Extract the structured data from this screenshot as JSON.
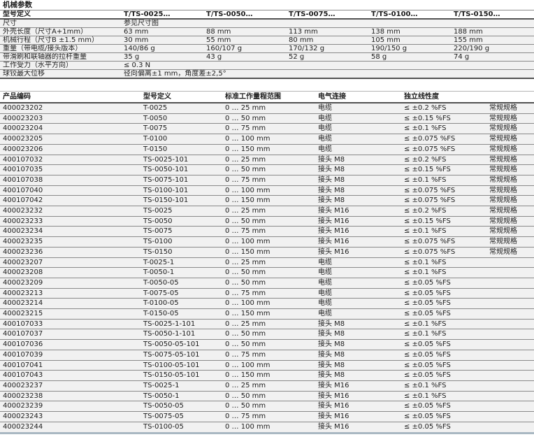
{
  "colors": {
    "page_bg": "#ffffff",
    "row_bg": "#f1f1f1",
    "row_line": "#8a8a8a",
    "header_line": "#525252",
    "bottom_band": "#a9b8c2",
    "text": "#1c1c1c"
  },
  "mech": {
    "title": "机械参数",
    "header": {
      "label": "型号定义",
      "values": [
        "T/TS-0025…",
        "T/TS-0050…",
        "T/TS-0075…",
        "T/TS-0100…",
        "T/TS-0150…"
      ]
    },
    "rows": [
      {
        "label": "尺寸",
        "span": "参见尺寸图"
      },
      {
        "label": "外壳长度（尺寸A+1mm）",
        "values": [
          "63 mm",
          "88 mm",
          "113 mm",
          "138 mm",
          "188 mm"
        ]
      },
      {
        "label": "机械行程（尺寸B ±1.5 mm）",
        "values": [
          "30 mm",
          "55 mm",
          "80 mm",
          "105 mm",
          "155 mm"
        ]
      },
      {
        "label": "重量（带电缆/接头版本）",
        "values": [
          "140/86 g",
          "160/107 g",
          "170/132 g",
          "190/150 g",
          "220/190 g"
        ]
      },
      {
        "label": "带滑刷和联轴器的拉杆重量",
        "values": [
          "35 g",
          "43 g",
          "52 g",
          "58 g",
          "74 g"
        ]
      },
      {
        "label": "工作受力（水平方向）",
        "span": "≤ 0.3 N"
      },
      {
        "label": "球铰最大位移",
        "span": "径向偏离±1 mm，角度差±2,5°"
      }
    ]
  },
  "products": {
    "headers": [
      "产品编码",
      "型号定义",
      "标准工作量程范围",
      "电气连接",
      "独立线性度",
      ""
    ],
    "rows": [
      [
        "400023202",
        "T-0025",
        "0 … 25 mm",
        "电缆",
        "≤ ±0.2 %FS",
        "常规规格"
      ],
      [
        "400023203",
        "T-0050",
        "0 … 50 mm",
        "电缆",
        "≤ ±0.15 %FS",
        "常规规格"
      ],
      [
        "400023204",
        "T-0075",
        "0 … 75 mm",
        "电缆",
        "≤ ±0.1 %FS",
        "常规规格"
      ],
      [
        "400023205",
        "T-0100",
        "0 … 100 mm",
        "电缆",
        "≤ ±0.075 %FS",
        "常规规格"
      ],
      [
        "400023206",
        "T-0150",
        "0 … 150 mm",
        "电缆",
        "≤ ±0.075 %FS",
        "常规规格"
      ],
      [
        "400107032",
        "TS-0025-101",
        "0 … 25 mm",
        "接头 M8",
        "≤ ±0.2 %FS",
        "常规规格"
      ],
      [
        "400107035",
        "TS-0050-101",
        "0 … 50 mm",
        "接头 M8",
        "≤ ±0.15 %FS",
        "常规规格"
      ],
      [
        "400107038",
        "TS-0075-101",
        "0 … 75 mm",
        "接头 M8",
        "≤ ±0.1 %FS",
        "常规规格"
      ],
      [
        "400107040",
        "TS-0100-101",
        "0 … 100 mm",
        "接头 M8",
        "≤ ±0.075 %FS",
        "常规规格"
      ],
      [
        "400107042",
        "TS-0150-101",
        "0 … 150 mm",
        "接头 M8",
        "≤ ±0.075 %FS",
        "常规规格"
      ],
      [
        "400023232",
        "TS-0025",
        "0 … 25 mm",
        "接头 M16",
        "≤ ±0.2 %FS",
        "常规规格"
      ],
      [
        "400023233",
        "TS-0050",
        "0 … 50 mm",
        "接头 M16",
        "≤ ±0.15 %FS",
        "常规规格"
      ],
      [
        "400023234",
        "TS-0075",
        "0 … 75 mm",
        "接头 M16",
        "≤ ±0.1 %FS",
        "常规规格"
      ],
      [
        "400023235",
        "TS-0100",
        "0 … 100 mm",
        "接头 M16",
        "≤ ±0.075 %FS",
        "常规规格"
      ],
      [
        "400023236",
        "TS-0150",
        "0 … 150 mm",
        "接头 M16",
        "≤ ±0.075 %FS",
        "常规规格"
      ],
      [
        "400023207",
        "T-0025-1",
        "0 … 25 mm",
        "电缆",
        "≤ ±0.1 %FS",
        ""
      ],
      [
        "400023208",
        "T-0050-1",
        "0 … 50 mm",
        "电缆",
        "≤ ±0.1 %FS",
        ""
      ],
      [
        "400023209",
        "T-0050-05",
        "0 … 50 mm",
        "电缆",
        "≤ ±0.05 %FS",
        ""
      ],
      [
        "400023213",
        "T-0075-05",
        "0 … 75 mm",
        "电缆",
        "≤ ±0.05 %FS",
        ""
      ],
      [
        "400023214",
        "T-0100-05",
        "0 … 100 mm",
        "电缆",
        "≤ ±0.05 %FS",
        ""
      ],
      [
        "400023215",
        "T-0150-05",
        "0 … 150 mm",
        "电缆",
        "≤ ±0.05 %FS",
        ""
      ],
      [
        "400107033",
        "TS-0025-1-101",
        "0 … 25 mm",
        "接头 M8",
        "≤ ±0.1 %FS",
        ""
      ],
      [
        "400107037",
        "TS-0050-1-101",
        "0 … 50 mm",
        "接头 M8",
        "≤ ±0.1 %FS",
        ""
      ],
      [
        "400107036",
        "TS-0050-05-101",
        "0 … 50 mm",
        "接头 M8",
        "≤ ±0.05 %FS",
        ""
      ],
      [
        "400107039",
        "TS-0075-05-101",
        "0 … 75 mm",
        "接头 M8",
        "≤ ±0.05 %FS",
        ""
      ],
      [
        "400107041",
        "TS-0100-05-101",
        "0 … 100 mm",
        "接头 M8",
        "≤ ±0.05 %FS",
        ""
      ],
      [
        "400107043",
        "TS-0150-05-101",
        "0 … 150 mm",
        "接头 M8",
        "≤ ±0.05 %FS",
        ""
      ],
      [
        "400023237",
        "TS-0025-1",
        "0 … 25 mm",
        "接头 M16",
        "≤ ±0.1 %FS",
        ""
      ],
      [
        "400023238",
        "TS-0050-1",
        "0 … 50 mm",
        "接头 M16",
        "≤ ±0.1 %FS",
        ""
      ],
      [
        "400023239",
        "TS-0050-05",
        "0 … 50 mm",
        "接头 M16",
        "≤ ±0.05 %FS",
        ""
      ],
      [
        "400023243",
        "TS-0075-05",
        "0 … 75 mm",
        "接头 M16",
        "≤ ±0.05 %FS",
        ""
      ],
      [
        "400023244",
        "TS-0100-05",
        "0 … 100 mm",
        "接头 M16",
        "≤ ±0.05 %FS",
        ""
      ]
    ]
  }
}
